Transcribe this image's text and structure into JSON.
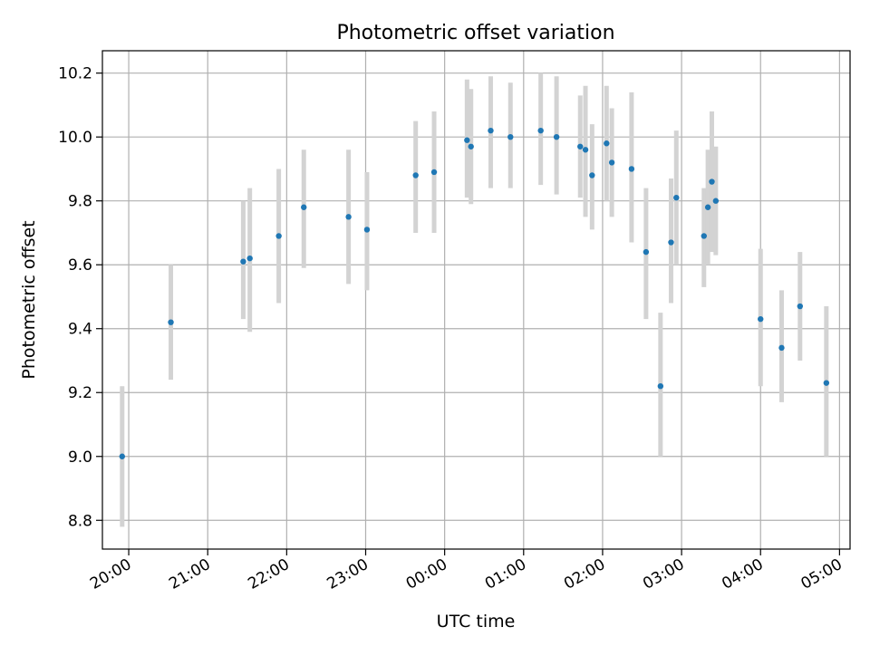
{
  "chart_data": {
    "type": "scatter",
    "title": "Photometric offset variation",
    "xlabel": "UTC time",
    "ylabel": "Photometric offset",
    "x_axis": {
      "kind": "time",
      "range": [
        "19:40",
        "05:08"
      ]
    },
    "ylim": [
      8.71,
      10.27
    ],
    "grid": true,
    "legend": "none",
    "colors": {
      "point": "#1f77b4",
      "errorbar": "#d3d3d3",
      "grid": "#b0b0b0"
    },
    "x_ticks": [
      "20:00",
      "21:00",
      "22:00",
      "23:00",
      "00:00",
      "01:00",
      "02:00",
      "03:00",
      "04:00",
      "05:00"
    ],
    "y_ticks": [
      "8.8",
      "9.0",
      "9.2",
      "9.4",
      "9.6",
      "9.8",
      "10.0",
      "10.2"
    ],
    "points": [
      {
        "t": "19:55",
        "y": 9.0,
        "lo": 8.78,
        "hi": 9.22
      },
      {
        "t": "20:32",
        "y": 9.42,
        "lo": 9.24,
        "hi": 9.6
      },
      {
        "t": "21:27",
        "y": 9.61,
        "lo": 9.43,
        "hi": 9.8
      },
      {
        "t": "21:32",
        "y": 9.62,
        "lo": 9.39,
        "hi": 9.84
      },
      {
        "t": "21:54",
        "y": 9.69,
        "lo": 9.48,
        "hi": 9.9
      },
      {
        "t": "22:13",
        "y": 9.78,
        "lo": 9.59,
        "hi": 9.96
      },
      {
        "t": "22:47",
        "y": 9.75,
        "lo": 9.54,
        "hi": 9.96
      },
      {
        "t": "23:01",
        "y": 9.71,
        "lo": 9.52,
        "hi": 9.89
      },
      {
        "t": "23:38",
        "y": 9.88,
        "lo": 9.7,
        "hi": 10.05
      },
      {
        "t": "23:52",
        "y": 9.89,
        "lo": 9.7,
        "hi": 10.08
      },
      {
        "t": "00:17",
        "y": 9.99,
        "lo": 9.81,
        "hi": 10.18
      },
      {
        "t": "00:20",
        "y": 9.97,
        "lo": 9.79,
        "hi": 10.15
      },
      {
        "t": "00:35",
        "y": 10.02,
        "lo": 9.84,
        "hi": 10.19
      },
      {
        "t": "00:50",
        "y": 10.0,
        "lo": 9.84,
        "hi": 10.17
      },
      {
        "t": "01:13",
        "y": 10.02,
        "lo": 9.85,
        "hi": 10.2
      },
      {
        "t": "01:25",
        "y": 10.0,
        "lo": 9.82,
        "hi": 10.19
      },
      {
        "t": "01:43",
        "y": 9.97,
        "lo": 9.81,
        "hi": 10.13
      },
      {
        "t": "01:47",
        "y": 9.96,
        "lo": 9.75,
        "hi": 10.16
      },
      {
        "t": "01:52",
        "y": 9.88,
        "lo": 9.71,
        "hi": 10.04
      },
      {
        "t": "02:03",
        "y": 9.98,
        "lo": 9.8,
        "hi": 10.16
      },
      {
        "t": "02:07",
        "y": 9.92,
        "lo": 9.75,
        "hi": 10.09
      },
      {
        "t": "02:22",
        "y": 9.9,
        "lo": 9.67,
        "hi": 10.14
      },
      {
        "t": "02:33",
        "y": 9.64,
        "lo": 9.43,
        "hi": 9.84
      },
      {
        "t": "02:44",
        "y": 9.22,
        "lo": 9.0,
        "hi": 9.45
      },
      {
        "t": "02:52",
        "y": 9.67,
        "lo": 9.48,
        "hi": 9.87
      },
      {
        "t": "02:56",
        "y": 9.81,
        "lo": 9.6,
        "hi": 10.02
      },
      {
        "t": "03:17",
        "y": 9.69,
        "lo": 9.53,
        "hi": 9.84
      },
      {
        "t": "03:20",
        "y": 9.78,
        "lo": 9.6,
        "hi": 9.96
      },
      {
        "t": "03:23",
        "y": 9.86,
        "lo": 9.64,
        "hi": 10.08
      },
      {
        "t": "03:26",
        "y": 9.8,
        "lo": 9.63,
        "hi": 9.97
      },
      {
        "t": "04:00",
        "y": 9.43,
        "lo": 9.22,
        "hi": 9.65
      },
      {
        "t": "04:16",
        "y": 9.34,
        "lo": 9.17,
        "hi": 9.52
      },
      {
        "t": "04:30",
        "y": 9.47,
        "lo": 9.3,
        "hi": 9.64
      },
      {
        "t": "04:50",
        "y": 9.23,
        "lo": 9.0,
        "hi": 9.47
      }
    ]
  }
}
